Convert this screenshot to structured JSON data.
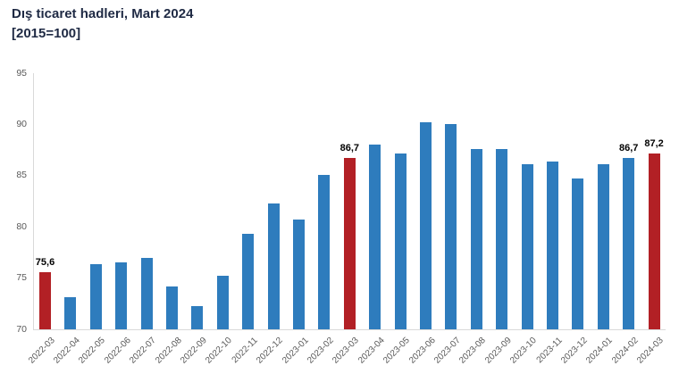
{
  "title": "Dış ticaret hadleri, Mart 2024",
  "subtitle": "[2015=100]",
  "colors": {
    "bar": "#2e7cbd",
    "highlight": "#b22025",
    "title": "#1f2a44",
    "axis_text": "#595959",
    "axis_line": "#d9d9d9",
    "data_label": "#000000"
  },
  "chart_data": {
    "type": "bar",
    "title": "Dış ticaret hadleri, Mart 2024",
    "subtitle": "[2015=100]",
    "categories": [
      "2022-03",
      "2022-04",
      "2022-05",
      "2022-06",
      "2022-07",
      "2022-08",
      "2022-09",
      "2022-10",
      "2022-11",
      "2022-12",
      "2023-01",
      "2023-02",
      "2023-03",
      "2023-04",
      "2023-05",
      "2023-06",
      "2023-07",
      "2023-08",
      "2023-09",
      "2023-10",
      "2023-11",
      "2023-12",
      "2024-01",
      "2024-02",
      "2024-03"
    ],
    "values": [
      75.6,
      73.1,
      76.4,
      76.5,
      77.0,
      74.2,
      72.3,
      75.2,
      79.3,
      82.3,
      80.7,
      85.1,
      86.7,
      88.0,
      87.2,
      90.2,
      90.0,
      87.6,
      87.6,
      86.1,
      86.4,
      84.7,
      86.1,
      86.7,
      87.2
    ],
    "highlighted_categories": [
      "2022-03",
      "2023-03",
      "2024-03"
    ],
    "data_labels": {
      "2022-03": "75,6",
      "2023-03": "86,7",
      "2024-02": "86,7",
      "2024-03": "87,2"
    },
    "xlabel": "",
    "ylabel": "",
    "ylim": [
      70,
      95
    ],
    "yticks": [
      70,
      75,
      80,
      85,
      90,
      95
    ],
    "grid": false,
    "legend": false,
    "bar_orientation": "vertical"
  }
}
